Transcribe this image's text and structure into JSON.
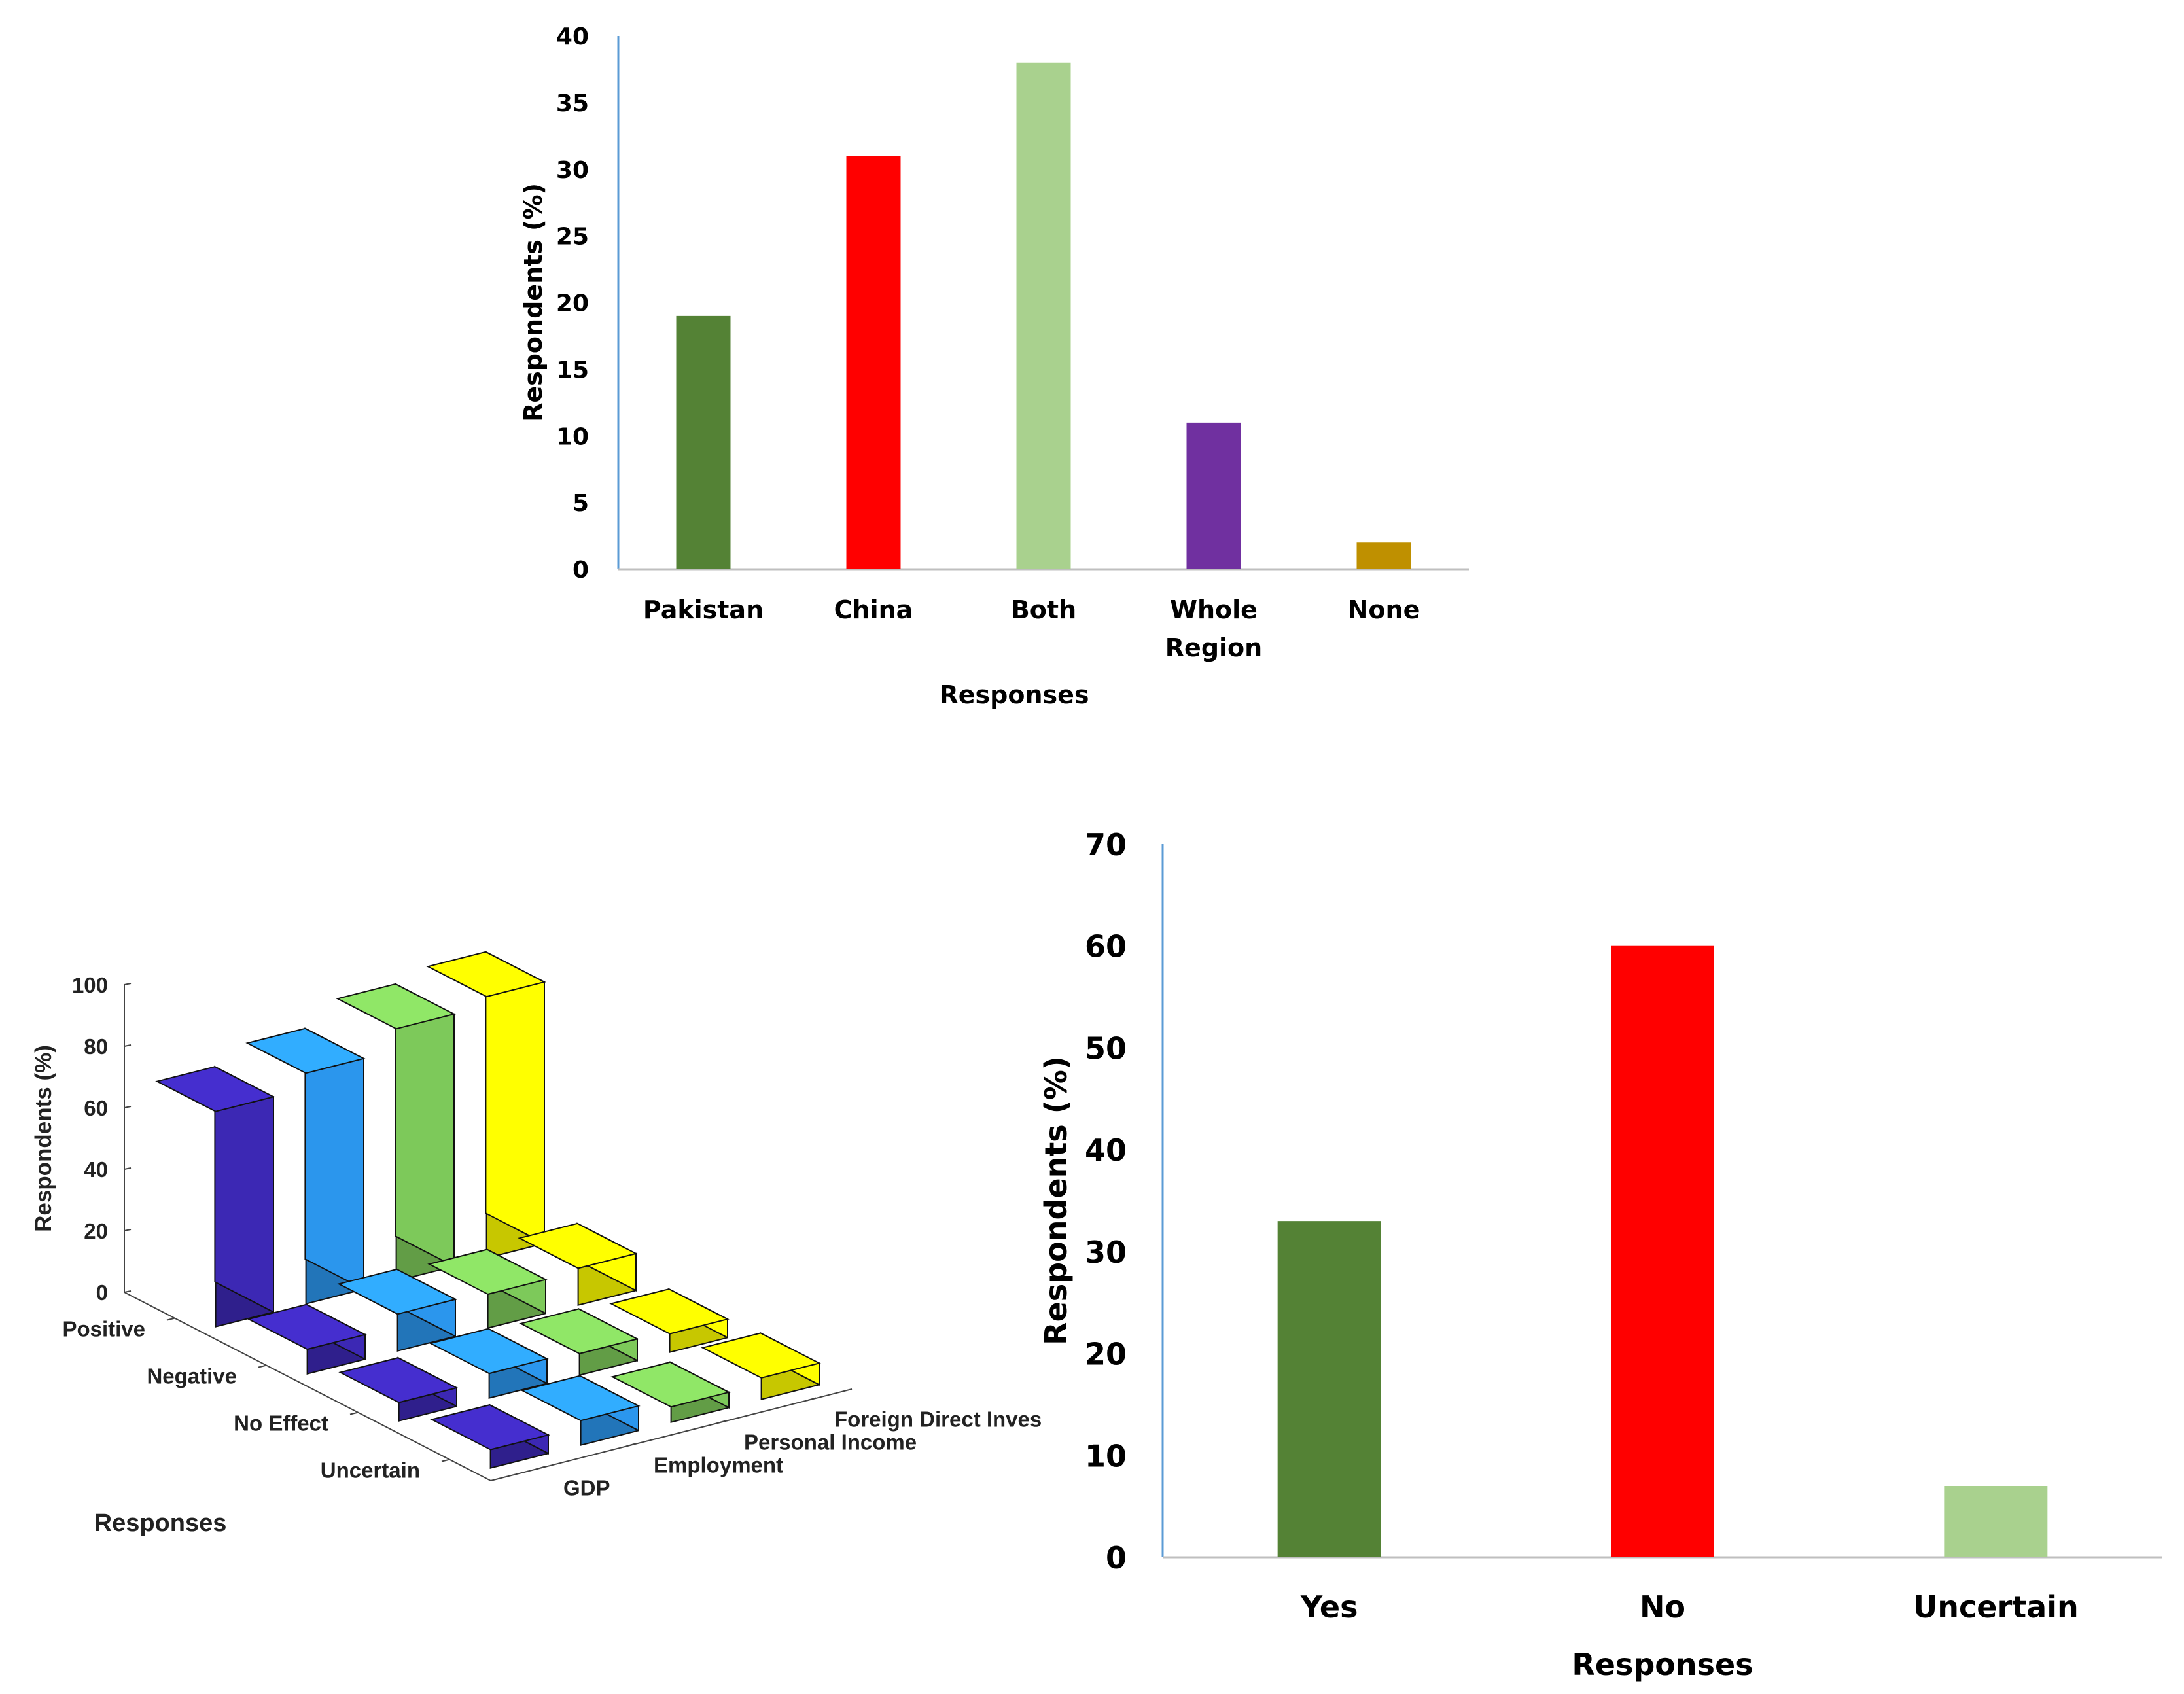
{
  "chart_data": [
    {
      "type": "bar",
      "title": "",
      "xlabel": "Responses",
      "ylabel": "Respondents (%)",
      "ylim": [
        0,
        40
      ],
      "yticks": [
        0,
        5,
        10,
        15,
        20,
        25,
        30,
        35,
        40
      ],
      "categories": [
        "Pakistan",
        "China",
        "Both",
        "Whole Region",
        "None"
      ],
      "category_lines": [
        [
          "Pakistan"
        ],
        [
          "China"
        ],
        [
          "Both"
        ],
        [
          "Whole",
          "Region"
        ],
        [
          "None"
        ]
      ],
      "values": [
        19,
        31,
        38,
        11,
        2
      ],
      "colors": [
        "#548235",
        "#ff0000",
        "#a9d18e",
        "#7030a0",
        "#bf9000"
      ],
      "grid": false
    },
    {
      "type": "bar3d",
      "title": "",
      "xlabel": "Responses",
      "ylabel": "Respondents (%)",
      "zlim": [
        0,
        100
      ],
      "zticks": [
        0,
        20,
        40,
        60,
        80,
        100
      ],
      "rows": [
        "Positive",
        "Negative",
        "No Effect",
        "Uncertain"
      ],
      "series": [
        {
          "name": "GDP",
          "values": [
            70,
            8,
            6,
            6
          ],
          "color": "#3c28b4"
        },
        {
          "name": "Employment",
          "values": [
            75,
            12,
            8,
            8
          ],
          "color": "#2b96ed"
        },
        {
          "name": "Personal Income",
          "values": [
            82,
            11,
            7,
            5
          ],
          "color": "#7dc95a"
        },
        {
          "name": "Foreign Direct Inves",
          "values": [
            85,
            12,
            6,
            7
          ],
          "color": "#ffff00"
        }
      ]
    },
    {
      "type": "bar",
      "title": "",
      "xlabel": "Responses",
      "ylabel": "Respondents (%)",
      "ylim": [
        0,
        70
      ],
      "yticks": [
        0,
        10,
        20,
        30,
        40,
        50,
        60,
        70
      ],
      "categories": [
        "Yes",
        "No",
        "Uncertain"
      ],
      "values": [
        33,
        60,
        7
      ],
      "colors": [
        "#548235",
        "#ff0000",
        "#a9d18e"
      ],
      "grid": false
    }
  ]
}
